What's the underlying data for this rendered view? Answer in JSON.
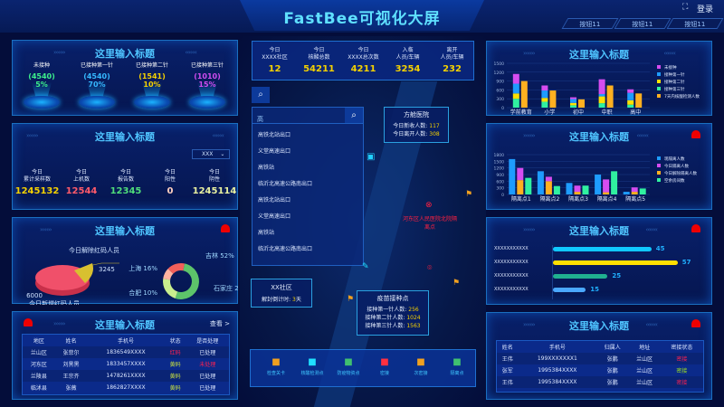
{
  "header": {
    "title": "FastBee可视化大屏",
    "buttons": [
      "按钮11",
      "按钮11",
      "按钮11"
    ],
    "login": "登录",
    "fullscreen_icon": "fullscreen-icon"
  },
  "panel_title": "这里输入标题",
  "vaccine": {
    "items": [
      {
        "label": "未接种",
        "count": "(4540)",
        "pct": "5%",
        "color": "#3cf08c"
      },
      {
        "label": "已接种第一针",
        "count": "(4540)",
        "pct": "70%",
        "color": "#35b8ff"
      },
      {
        "label": "已接种第二针",
        "count": "(1541)",
        "pct": "10%",
        "color": "#f5d100"
      },
      {
        "label": "已接种第三针",
        "count": "(1010)",
        "pct": "15%",
        "color": "#d04cf0"
      }
    ]
  },
  "testing": {
    "select": "XXX",
    "items": [
      {
        "l1": "今日",
        "l2": "累计采样数",
        "v": "1245132",
        "color": "#f5d100"
      },
      {
        "l1": "今日",
        "l2": "上机数",
        "v": "12544",
        "color": "#ff5a6a"
      },
      {
        "l1": "今日",
        "l2": "报告数",
        "v": "12345",
        "color": "#4fdc7a"
      },
      {
        "l1": "今日",
        "l2": "阳性",
        "v": "0",
        "color": "#ffd0c0"
      },
      {
        "l1": "今日",
        "l2": "阴性",
        "v": "1245114",
        "color": "#e8f0a0"
      }
    ]
  },
  "redcode": {
    "new_label": "今日新增红码人员",
    "new_value": "6000",
    "removed_label": "今日解除红码人员",
    "removed_value": "3245",
    "donut": [
      {
        "name": "吉林",
        "pct": 52,
        "color": "#5dc46a"
      },
      {
        "name": "石家庄",
        "pct": 22,
        "color": "#c9ef8e"
      },
      {
        "name": "合肥",
        "pct": 10,
        "color": "#ffb3a0"
      },
      {
        "name": "上海",
        "pct": 16,
        "color": "#f2605a"
      }
    ]
  },
  "left_table": {
    "view": "查看 >",
    "columns": [
      "地区",
      "姓名",
      "手机号",
      "状态",
      "是否处理"
    ],
    "rows": [
      [
        "兰山区",
        "张菲尔",
        "1836549XXXX",
        "红码",
        "已处理"
      ],
      [
        "河东区",
        "刘黑黑",
        "1833457XXXX",
        "黄码",
        "未处理"
      ],
      [
        "兰陵县",
        "王宗齐",
        "1478261XXXX",
        "黄码",
        "已处理"
      ],
      [
        "临沭县",
        "张薇",
        "1862827XXXX",
        "黄码",
        "已处理"
      ]
    ]
  },
  "stats": [
    {
      "l1": "今日",
      "l2": "XXXX社区",
      "v": "12"
    },
    {
      "l1": "今日",
      "l2": "核酸总数",
      "v": "54211"
    },
    {
      "l1": "今日",
      "l2": "XXXX总次数",
      "v": "4211"
    },
    {
      "l1": "入临",
      "l2": "人员/车辆",
      "v": "3254"
    },
    {
      "l1": "离开",
      "l2": "人员/车辆",
      "v": "232"
    }
  ],
  "search": {
    "value": "高",
    "results": [
      "高铁北站出口",
      "义堂高速出口",
      "高铁站",
      "临沂北高速公路南出口",
      "高铁北站出口",
      "义堂高速出口",
      "高铁站",
      "临沂北高速公路南出口"
    ]
  },
  "popups": {
    "hospital": {
      "title": "方舱医院",
      "l1": "今日新收人数:",
      "v1": "117",
      "l2": "今日离开人数:",
      "v2": "308"
    },
    "community": {
      "title": "XX社区",
      "label": "解封倒计时:",
      "value": "3",
      "unit": "天"
    },
    "vaccine_point": {
      "title": "疫苗接种点",
      "l1": "接种第一针人数:",
      "v1": "256",
      "l2": "接种第二针人数:",
      "v2": "1024",
      "l3": "接种第三针人数:",
      "v3": "1563"
    },
    "isolation": "河东区人民医院北院隔离点"
  },
  "legend_bar": [
    {
      "label": "检查关卡",
      "icon": "checkpoint-flag-icon",
      "color": "#f0a020"
    },
    {
      "label": "核酸检测点",
      "icon": "test-tube-icon",
      "color": "#20e0ff"
    },
    {
      "label": "防疫物资点",
      "icon": "supplies-icon",
      "color": "#40c070"
    },
    {
      "label": "密接",
      "icon": "close-contact-icon",
      "color": "#ff3040"
    },
    {
      "label": "次密接",
      "icon": "secondary-contact-icon",
      "color": "#f0a020"
    },
    {
      "label": "隔离点",
      "icon": "isolation-point-icon",
      "color": "#40c070"
    }
  ],
  "chart_data": [
    {
      "type": "bar",
      "categories": [
        "学前教育",
        "小学",
        "初中",
        "中职",
        "高中"
      ],
      "ylim": [
        0,
        1500
      ],
      "yticks": [
        0,
        300,
        600,
        900,
        1200,
        1500
      ],
      "series": [
        {
          "name": "未接种",
          "color": "#d64cf0",
          "stack": "a",
          "values": [
            330,
            170,
            60,
            500,
            120
          ]
        },
        {
          "name": "接种第一针",
          "color": "#1e9cff",
          "stack": "a",
          "values": [
            330,
            250,
            130,
            80,
            250
          ]
        },
        {
          "name": "接种第二针",
          "color": "#ffe000",
          "stack": "a",
          "values": [
            180,
            130,
            80,
            230,
            150
          ]
        },
        {
          "name": "接种第三针",
          "color": "#30f0a0",
          "stack": "a",
          "values": [
            300,
            200,
            80,
            150,
            100
          ]
        },
        {
          "name": "7天内核酸检测人数",
          "color": "#ffb020",
          "stack": "b",
          "values": [
            900,
            580,
            280,
            750,
            480
          ]
        }
      ]
    },
    {
      "type": "bar",
      "categories": [
        "隔离点1",
        "隔离点2",
        "隔离点3",
        "隔离点4",
        "隔离点5"
      ],
      "ylim": [
        0,
        1800
      ],
      "yticks": [
        0,
        300,
        600,
        900,
        1200,
        1500,
        1800
      ],
      "series": [
        {
          "name": "现隔离人数",
          "color": "#1e9cff",
          "stack": "a",
          "values": [
            1600,
            1050,
            520,
            900,
            120
          ]
        },
        {
          "name": "今日隔离人数",
          "color": "#d64cf0",
          "stack": "b",
          "values": [
            550,
            200,
            280,
            580,
            200
          ]
        },
        {
          "name": "今日解除隔离人数",
          "color": "#ffb020",
          "stack": "b",
          "values": [
            650,
            600,
            120,
            100,
            120
          ]
        },
        {
          "name": "空余房间数",
          "color": "#30f0a0",
          "stack": "c",
          "values": [
            750,
            380,
            400,
            1050,
            270
          ]
        }
      ]
    },
    {
      "type": "bar",
      "orientation": "horizontal",
      "categories": [
        "XXXXXXXXXXX",
        "XXXXXXXXXXX",
        "XXXXXXXXXXX",
        "XXXXXXXXXXX"
      ],
      "values": [
        45,
        57,
        25,
        15
      ],
      "colors": [
        "#10c8ff",
        "#ffe000",
        "#20b090",
        "#4aa8ff"
      ]
    }
  ],
  "right_table": {
    "columns": [
      "姓名",
      "手机号",
      "归属人",
      "地址",
      "密接状态"
    ],
    "rows": [
      [
        "王伟",
        "199XXXXXXX1",
        "张鹏",
        "兰山区",
        "密接"
      ],
      [
        "张军",
        "1995384XXXX",
        "张鹏",
        "兰山区",
        "密接"
      ],
      [
        "王伟",
        "1995384XXXX",
        "张鹏",
        "兰山区",
        "密接"
      ]
    ],
    "status_colors": [
      "#ff2050",
      "#a0e020",
      "#ff2050"
    ]
  }
}
